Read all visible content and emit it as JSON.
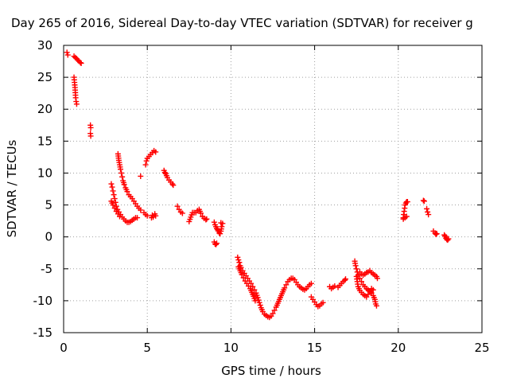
{
  "chart_data": {
    "type": "scatter",
    "title": "Day 265 of 2016, Sidereal Day-to-day VTEC variation (SDTVAR) for receiver g",
    "xlabel": "GPS time / hours",
    "ylabel": "SDTVAR / TECUs",
    "xlim": [
      0,
      25
    ],
    "ylim": [
      -15,
      30
    ],
    "xticks": [
      "0",
      "5",
      "10",
      "15",
      "20",
      "25"
    ],
    "yticks": [
      "-15",
      "-10",
      "-5",
      "0",
      "5",
      "10",
      "15",
      "20",
      "25",
      "30"
    ],
    "grid": true,
    "marker": "+",
    "color": "#ff0000",
    "series": [
      {
        "name": "SDTVAR",
        "segments": [
          [
            [
              0.2,
              28.9
            ],
            [
              0.25,
              28.5
            ]
          ],
          [
            [
              0.62,
              25.0
            ],
            [
              0.65,
              24.2
            ],
            [
              0.68,
              23.4
            ],
            [
              0.7,
              22.6
            ],
            [
              0.72,
              21.8
            ],
            [
              0.75,
              21.2
            ],
            [
              0.78,
              20.8
            ]
          ],
          [
            [
              0.62,
              28.3
            ],
            [
              0.7,
              28.1
            ],
            [
              0.78,
              27.9
            ],
            [
              0.85,
              27.7
            ],
            [
              0.92,
              27.5
            ],
            [
              1.0,
              27.3
            ],
            [
              1.05,
              27.2
            ]
          ],
          [
            [
              1.6,
              17.5
            ],
            [
              1.62,
              17.1
            ]
          ],
          [
            [
              1.6,
              16.2
            ],
            [
              1.62,
              15.8
            ]
          ],
          [
            [
              2.85,
              8.3
            ],
            [
              2.9,
              7.8
            ],
            [
              2.95,
              7.2
            ],
            [
              3.0,
              6.6
            ],
            [
              3.05,
              6.0
            ],
            [
              3.1,
              5.4
            ],
            [
              3.15,
              4.8
            ],
            [
              3.22,
              4.3
            ],
            [
              3.3,
              3.9
            ],
            [
              3.4,
              3.5
            ],
            [
              3.5,
              3.1
            ],
            [
              3.6,
              2.8
            ],
            [
              3.7,
              2.5
            ],
            [
              3.8,
              2.3
            ],
            [
              3.9,
              2.3
            ],
            [
              4.0,
              2.4
            ],
            [
              4.1,
              2.6
            ],
            [
              4.2,
              2.8
            ],
            [
              4.3,
              3.0
            ],
            [
              4.4,
              3.0
            ]
          ],
          [
            [
              2.85,
              5.6
            ],
            [
              2.95,
              5.0
            ],
            [
              3.05,
              4.5
            ],
            [
              3.15,
              4.0
            ],
            [
              3.25,
              3.6
            ],
            [
              3.35,
              3.2
            ]
          ],
          [
            [
              3.25,
              13.0
            ],
            [
              3.3,
              12.0
            ],
            [
              3.35,
              11.3
            ],
            [
              3.4,
              10.6
            ],
            [
              3.45,
              10.0
            ],
            [
              3.5,
              9.4
            ],
            [
              3.55,
              8.8
            ],
            [
              3.62,
              8.2
            ],
            [
              3.7,
              7.7
            ],
            [
              3.8,
              7.1
            ],
            [
              3.9,
              6.6
            ],
            [
              4.0,
              6.3
            ],
            [
              4.1,
              6.0
            ],
            [
              4.2,
              5.6
            ],
            [
              4.3,
              5.2
            ],
            [
              4.4,
              4.8
            ],
            [
              4.5,
              4.5
            ],
            [
              4.6,
              4.2
            ]
          ],
          [
            [
              4.6,
              9.5
            ]
          ],
          [
            [
              4.9,
              11.3
            ],
            [
              4.95,
              11.9
            ],
            [
              5.0,
              12.3
            ],
            [
              5.1,
              12.6
            ],
            [
              5.2,
              12.9
            ],
            [
              5.3,
              13.2
            ],
            [
              5.4,
              13.5
            ],
            [
              5.5,
              13.3
            ]
          ],
          [
            [
              4.8,
              3.8
            ],
            [
              4.9,
              3.5
            ],
            [
              5.0,
              3.3
            ]
          ],
          [
            [
              5.25,
              3.0
            ],
            [
              5.3,
              3.4
            ],
            [
              5.35,
              3.1
            ],
            [
              5.45,
              3.6
            ],
            [
              5.5,
              3.3
            ]
          ],
          [
            [
              6.0,
              10.4
            ],
            [
              6.05,
              10.1
            ],
            [
              6.1,
              9.9
            ],
            [
              6.15,
              9.6
            ],
            [
              6.2,
              9.3
            ],
            [
              6.3,
              8.9
            ],
            [
              6.4,
              8.6
            ],
            [
              6.5,
              8.3
            ],
            [
              6.55,
              8.1
            ]
          ],
          [
            [
              6.8,
              4.8
            ],
            [
              6.9,
              4.3
            ],
            [
              7.0,
              3.9
            ],
            [
              7.1,
              3.7
            ]
          ],
          [
            [
              7.5,
              2.4
            ],
            [
              7.6,
              3.1
            ],
            [
              7.7,
              3.8
            ],
            [
              7.8,
              3.8
            ],
            [
              7.9,
              3.8
            ],
            [
              8.0,
              4.1
            ],
            [
              8.1,
              4.3
            ],
            [
              8.2,
              3.7
            ],
            [
              8.3,
              3.2
            ],
            [
              8.4,
              2.9
            ],
            [
              8.5,
              2.7
            ],
            [
              8.55,
              2.8
            ]
          ],
          [
            [
              9.0,
              2.3
            ],
            [
              9.05,
              1.9
            ],
            [
              9.1,
              1.6
            ],
            [
              9.15,
              1.3
            ],
            [
              9.2,
              1.1
            ],
            [
              9.25,
              0.9
            ],
            [
              9.3,
              0.6
            ],
            [
              9.35,
              0.5
            ],
            [
              9.4,
              0.9
            ],
            [
              9.45,
              1.6
            ],
            [
              9.5,
              2.1
            ],
            [
              9.4,
              2.2
            ]
          ],
          [
            [
              9.0,
              -0.8
            ],
            [
              9.05,
              -1.1
            ],
            [
              9.1,
              -1.2
            ],
            [
              9.15,
              -1.0
            ]
          ],
          [
            [
              10.4,
              -3.2
            ],
            [
              10.45,
              -3.6
            ],
            [
              10.5,
              -4.0
            ],
            [
              10.55,
              -4.5
            ],
            [
              10.6,
              -4.8
            ],
            [
              10.7,
              -5.3
            ],
            [
              10.8,
              -5.7
            ],
            [
              10.9,
              -6.1
            ],
            [
              11.0,
              -6.5
            ],
            [
              11.1,
              -6.9
            ],
            [
              11.2,
              -7.3
            ],
            [
              11.3,
              -7.8
            ],
            [
              11.4,
              -8.3
            ],
            [
              11.5,
              -8.8
            ],
            [
              11.6,
              -9.5
            ],
            [
              11.7,
              -10.3
            ],
            [
              11.8,
              -11.1
            ],
            [
              11.9,
              -11.7
            ],
            [
              12.0,
              -12.1
            ],
            [
              12.1,
              -12.3
            ],
            [
              12.2,
              -12.5
            ],
            [
              12.3,
              -12.6
            ]
          ],
          [
            [
              10.45,
              -4.7
            ],
            [
              10.55,
              -5.3
            ],
            [
              10.65,
              -5.9
            ],
            [
              10.75,
              -6.4
            ],
            [
              10.85,
              -6.9
            ],
            [
              10.95,
              -7.3
            ],
            [
              11.05,
              -7.7
            ],
            [
              11.15,
              -8.1
            ],
            [
              11.25,
              -8.7
            ],
            [
              11.35,
              -9.3
            ],
            [
              11.45,
              -10.0
            ]
          ],
          [
            [
              12.4,
              -12.4
            ],
            [
              12.5,
              -12.0
            ],
            [
              12.6,
              -11.5
            ],
            [
              12.7,
              -11.0
            ],
            [
              12.8,
              -10.4
            ],
            [
              12.9,
              -9.8
            ],
            [
              13.0,
              -9.2
            ],
            [
              13.1,
              -8.6
            ],
            [
              13.2,
              -8.0
            ],
            [
              13.3,
              -7.5
            ],
            [
              13.4,
              -7.0
            ],
            [
              13.5,
              -6.7
            ],
            [
              13.6,
              -6.5
            ],
            [
              13.7,
              -6.5
            ],
            [
              13.8,
              -6.7
            ],
            [
              13.9,
              -7.1
            ],
            [
              14.0,
              -7.5
            ],
            [
              14.1,
              -7.8
            ],
            [
              14.2,
              -8.0
            ],
            [
              14.3,
              -8.2
            ],
            [
              14.4,
              -8.3
            ],
            [
              14.5,
              -8.1
            ],
            [
              14.6,
              -7.8
            ],
            [
              14.7,
              -7.5
            ],
            [
              14.8,
              -7.3
            ]
          ],
          [
            [
              14.8,
              -9.4
            ],
            [
              14.9,
              -9.8
            ],
            [
              15.0,
              -10.2
            ],
            [
              15.1,
              -10.6
            ],
            [
              15.2,
              -10.9
            ],
            [
              15.3,
              -10.8
            ],
            [
              15.4,
              -10.5
            ],
            [
              15.5,
              -10.3
            ]
          ],
          [
            [
              15.9,
              -7.8
            ],
            [
              16.0,
              -8.1
            ],
            [
              16.1,
              -7.9
            ],
            [
              16.2,
              -7.7
            ]
          ],
          [
            [
              16.4,
              -7.9
            ],
            [
              16.5,
              -7.6
            ],
            [
              16.6,
              -7.3
            ],
            [
              16.7,
              -7.0
            ],
            [
              16.8,
              -6.8
            ],
            [
              16.85,
              -6.6
            ]
          ],
          [
            [
              17.4,
              -3.8
            ],
            [
              17.45,
              -4.5
            ],
            [
              17.5,
              -5.0
            ],
            [
              17.55,
              -5.5
            ],
            [
              17.6,
              -6.0
            ],
            [
              17.7,
              -6.5
            ],
            [
              17.8,
              -7.0
            ],
            [
              17.9,
              -7.5
            ],
            [
              18.0,
              -7.8
            ],
            [
              18.1,
              -8.1
            ],
            [
              18.2,
              -8.3
            ],
            [
              18.3,
              -8.6
            ],
            [
              18.4,
              -8.8
            ],
            [
              18.5,
              -9.2
            ],
            [
              18.6,
              -9.8
            ],
            [
              18.65,
              -10.5
            ],
            [
              18.7,
              -10.8
            ]
          ],
          [
            [
              17.5,
              -6.2
            ],
            [
              17.55,
              -7.0
            ],
            [
              17.6,
              -7.8
            ],
            [
              17.7,
              -8.4
            ],
            [
              17.8,
              -8.7
            ],
            [
              17.9,
              -9.0
            ],
            [
              18.0,
              -9.2
            ],
            [
              18.1,
              -9.4
            ],
            [
              18.2,
              -9.0
            ],
            [
              18.3,
              -8.5
            ],
            [
              18.4,
              -8.1
            ],
            [
              18.5,
              -8.3
            ]
          ],
          [
            [
              17.7,
              -5.5
            ],
            [
              17.8,
              -5.8
            ],
            [
              17.9,
              -6.0
            ],
            [
              18.0,
              -5.8
            ],
            [
              18.1,
              -5.6
            ],
            [
              18.2,
              -5.5
            ],
            [
              18.3,
              -5.3
            ],
            [
              18.4,
              -5.6
            ],
            [
              18.5,
              -5.8
            ],
            [
              18.6,
              -6.0
            ],
            [
              18.7,
              -6.2
            ],
            [
              18.75,
              -6.5
            ]
          ],
          [
            [
              20.3,
              3.0
            ],
            [
              20.32,
              3.5
            ],
            [
              20.35,
              4.0
            ],
            [
              20.38,
              4.5
            ],
            [
              20.4,
              5.0
            ],
            [
              20.45,
              5.3
            ],
            [
              20.5,
              5.5
            ],
            [
              20.55,
              5.5
            ]
          ],
          [
            [
              20.3,
              2.8
            ],
            [
              20.4,
              3.0
            ],
            [
              20.5,
              3.2
            ]
          ],
          [
            [
              21.5,
              5.7
            ],
            [
              21.55,
              5.6
            ]
          ],
          [
            [
              21.7,
              4.4
            ],
            [
              21.75,
              3.9
            ],
            [
              21.8,
              3.5
            ]
          ],
          [
            [
              22.1,
              0.9
            ],
            [
              22.2,
              0.6
            ],
            [
              22.25,
              0.4
            ],
            [
              22.3,
              0.5
            ]
          ],
          [
            [
              22.75,
              0.3
            ],
            [
              22.8,
              0.1
            ],
            [
              22.85,
              -0.2
            ],
            [
              22.9,
              -0.4
            ],
            [
              22.95,
              -0.5
            ],
            [
              23.0,
              -0.3
            ]
          ]
        ]
      }
    ]
  }
}
